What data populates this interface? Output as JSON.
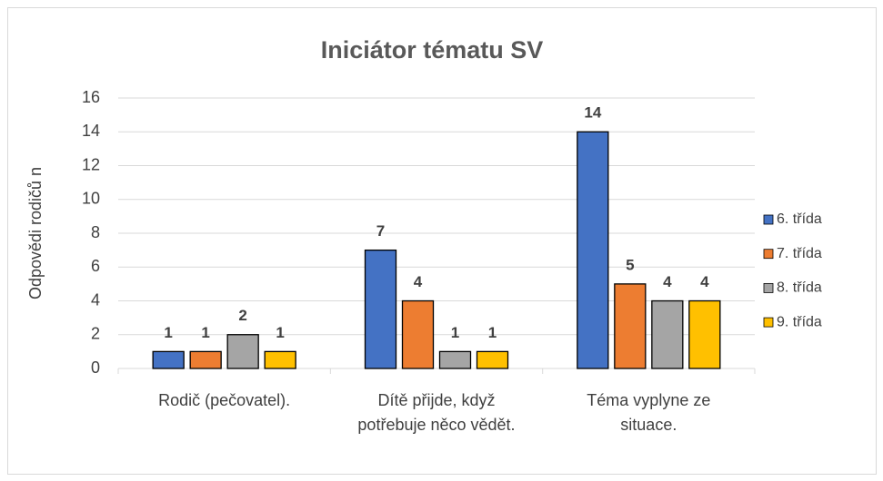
{
  "chart_data": {
    "type": "bar",
    "title": "Iniciátor tématu SV",
    "y_label": "Odpovědi rodičů n",
    "categories": [
      "Rodič (pečovatel).",
      "Dítě přijde, když potřebuje něco vědět.",
      "Téma vyplyne ze situace."
    ],
    "series": [
      {
        "name": "6. třída",
        "color": "#4472c4",
        "values": [
          1,
          7,
          14
        ]
      },
      {
        "name": "7. třída",
        "color": "#ed7d31",
        "values": [
          1,
          4,
          5
        ]
      },
      {
        "name": "8. třída",
        "color": "#a5a5a5",
        "values": [
          2,
          1,
          4
        ]
      },
      {
        "name": "9. třída",
        "color": "#ffc000",
        "values": [
          1,
          1,
          4
        ]
      }
    ],
    "ylim": [
      0,
      16
    ],
    "yticks": [
      0,
      2,
      4,
      6,
      8,
      10,
      12,
      14,
      16
    ],
    "grid": true,
    "legend": "right"
  }
}
